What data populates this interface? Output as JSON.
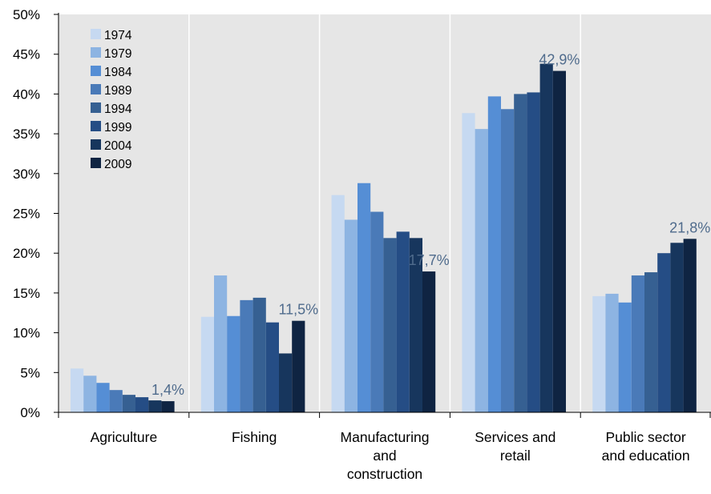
{
  "chart_data": {
    "type": "bar",
    "title": "",
    "xlabel": "",
    "ylabel": "",
    "ylim": [
      0,
      50
    ],
    "y_ticks": [
      "0%",
      "5%",
      "10%",
      "15%",
      "20%",
      "25%",
      "30%",
      "35%",
      "40%",
      "45%",
      "50%"
    ],
    "y_tick_values": [
      0,
      5,
      10,
      15,
      20,
      25,
      30,
      35,
      40,
      45,
      50
    ],
    "grid": "vertical separators between categories",
    "legend_position": "top-left",
    "categories": [
      [
        "Agriculture"
      ],
      [
        "Fishing"
      ],
      [
        "Manufacturing",
        "and",
        "construction"
      ],
      [
        "Services and",
        "retail"
      ],
      [
        "Public sector",
        "and education"
      ]
    ],
    "series": [
      {
        "name": "1974",
        "color": "#c6d9f1",
        "values": [
          5.5,
          12.0,
          27.3,
          37.6,
          14.6
        ]
      },
      {
        "name": "1979",
        "color": "#8db4e2",
        "values": [
          4.6,
          17.2,
          24.2,
          35.6,
          14.9
        ]
      },
      {
        "name": "1984",
        "color": "#558ed5",
        "values": [
          3.7,
          12.1,
          28.8,
          39.7,
          13.8
        ]
      },
      {
        "name": "1989",
        "color": "#4a7ab8",
        "values": [
          2.8,
          14.1,
          25.2,
          38.1,
          17.2
        ]
      },
      {
        "name": "1994",
        "color": "#366092",
        "values": [
          2.2,
          14.4,
          21.9,
          40.0,
          17.6
        ]
      },
      {
        "name": "1999",
        "color": "#254d85",
        "values": [
          1.9,
          11.3,
          22.7,
          40.2,
          20.0
        ]
      },
      {
        "name": "2004",
        "color": "#17365d",
        "values": [
          1.5,
          7.4,
          21.9,
          43.8,
          21.3
        ]
      },
      {
        "name": "2009",
        "color": "#0f2442",
        "values": [
          1.4,
          11.5,
          17.7,
          42.9,
          21.8
        ]
      }
    ],
    "annotations": [
      "1,4%",
      "11,5%",
      "17,7%",
      "42,9%",
      "21,8%"
    ],
    "colors": {
      "plot_background": "#e6e6e6",
      "annotation_text": "#4f6b8c",
      "axis": "#000000",
      "separator": "#ffffff"
    }
  }
}
